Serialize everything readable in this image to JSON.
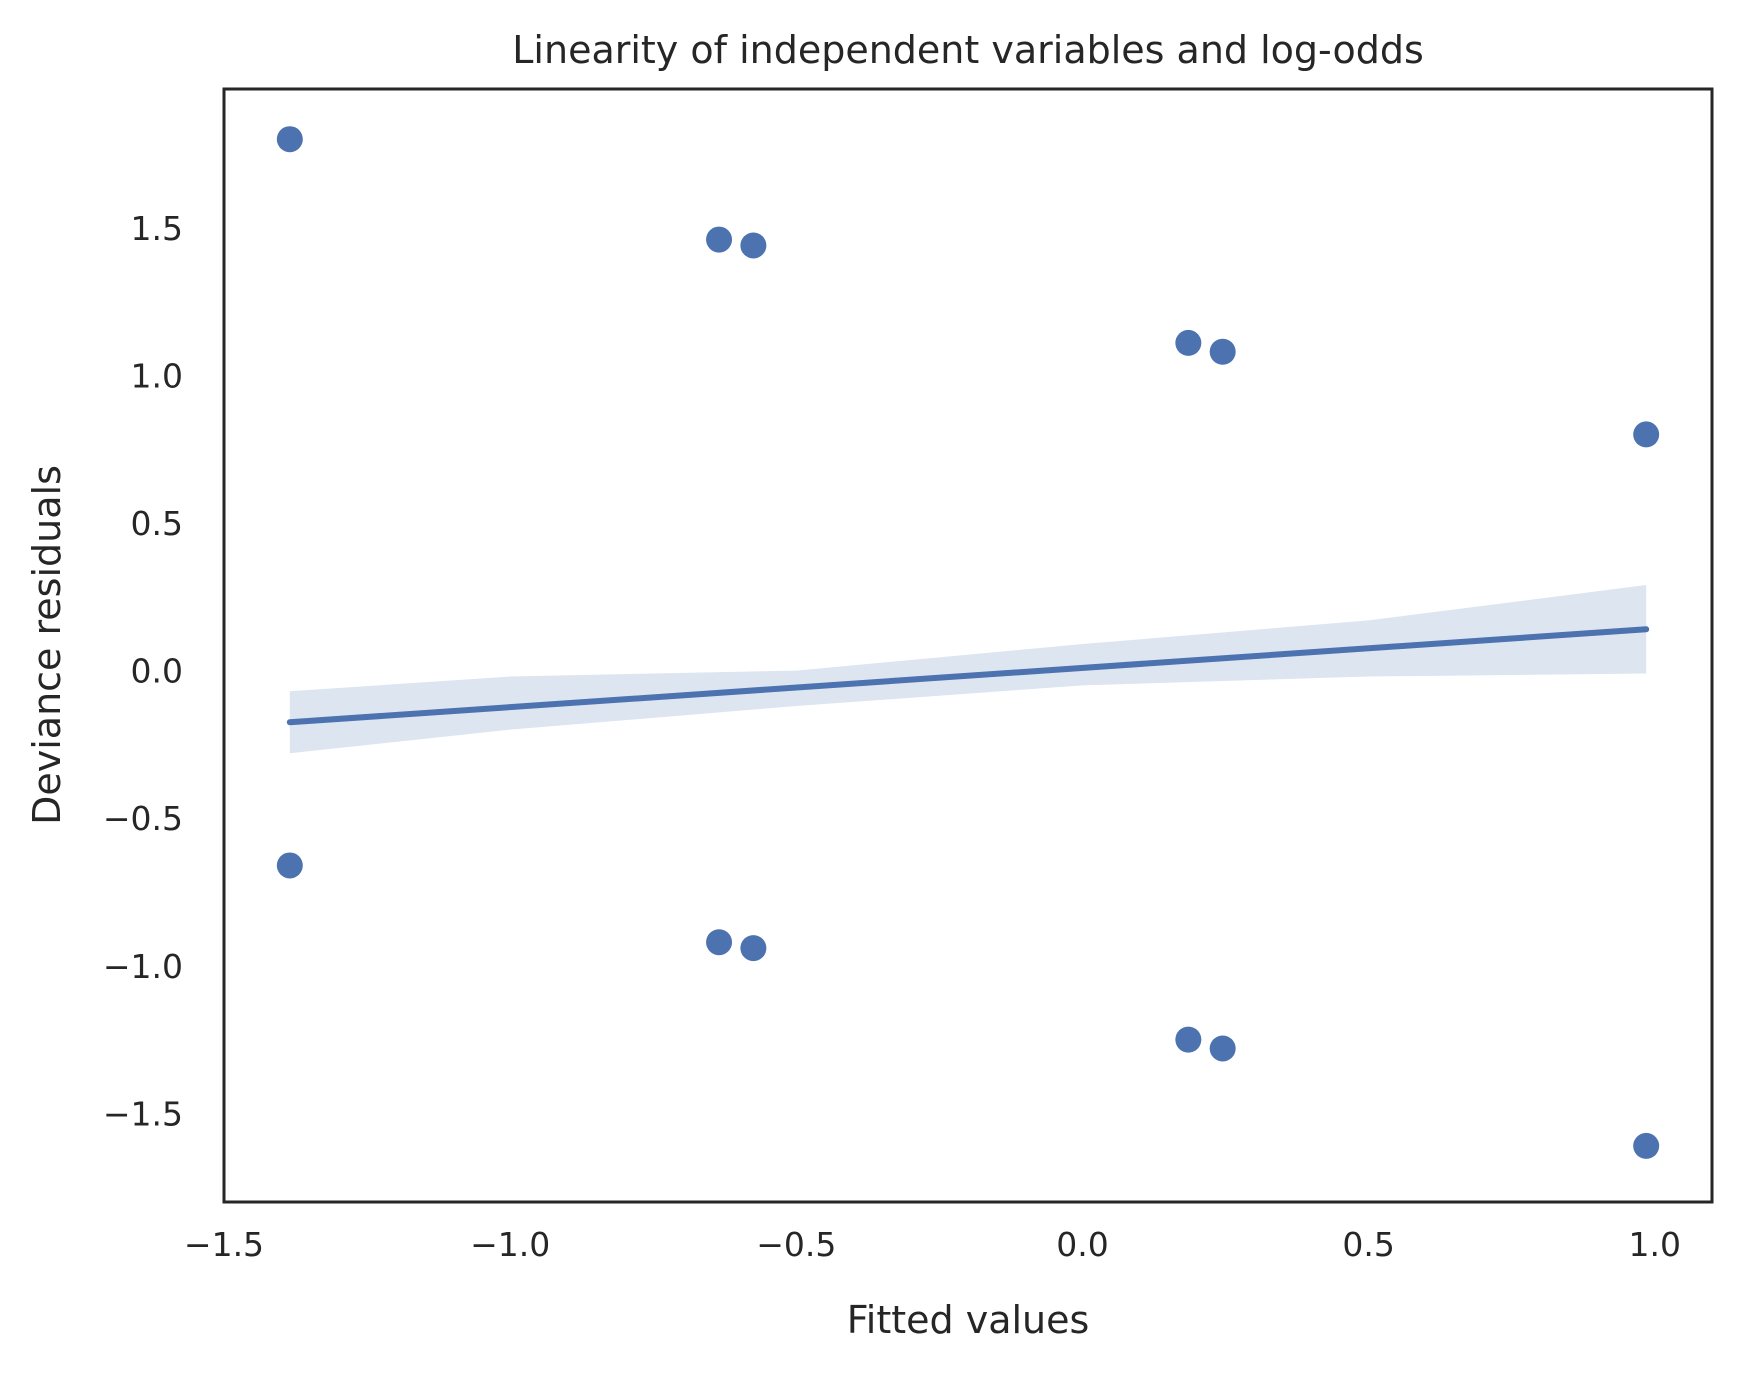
{
  "chart_data": {
    "type": "scatter",
    "title": "Linearity of independent variables and log-odds",
    "xlabel": "Fitted values",
    "ylabel": "Deviance residuals",
    "xlim": [
      -1.5,
      1.1
    ],
    "ylim": [
      -1.8,
      1.97
    ],
    "x_ticks": [
      -1.5,
      -1.0,
      -0.5,
      0.0,
      0.5,
      1.0
    ],
    "x_tick_labels": [
      "−1.5",
      "−1.0",
      "−0.5",
      "0.0",
      "0.5",
      "1.0"
    ],
    "y_ticks": [
      -1.5,
      -1.0,
      -0.5,
      0.0,
      0.5,
      1.0,
      1.5
    ],
    "y_tick_labels": [
      "−1.5",
      "−1.0",
      "−0.5",
      "0.0",
      "0.5",
      "1.0",
      "1.5"
    ],
    "grid": false,
    "color": "#4c72b0",
    "band_color": "#dde5f1",
    "points": [
      {
        "x": -1.385,
        "y": 1.8
      },
      {
        "x": -1.385,
        "y": -0.66
      },
      {
        "x": -0.635,
        "y": 1.46
      },
      {
        "x": -0.575,
        "y": 1.44
      },
      {
        "x": -0.635,
        "y": -0.92
      },
      {
        "x": -0.575,
        "y": -0.94
      },
      {
        "x": 0.185,
        "y": 1.11
      },
      {
        "x": 0.245,
        "y": 1.08
      },
      {
        "x": 0.185,
        "y": -1.25
      },
      {
        "x": 0.245,
        "y": -1.28
      },
      {
        "x": 0.985,
        "y": 0.8
      },
      {
        "x": 0.985,
        "y": -1.61
      }
    ],
    "regression_line": [
      {
        "x": -1.385,
        "y": -0.175
      },
      {
        "x": 0.985,
        "y": 0.14
      }
    ],
    "confidence_band": {
      "x": [
        -1.385,
        -1.0,
        -0.5,
        0.0,
        0.5,
        0.985
      ],
      "upper": [
        -0.07,
        -0.02,
        0.0,
        0.09,
        0.17,
        0.29
      ],
      "lower": [
        -0.28,
        -0.2,
        -0.12,
        -0.05,
        -0.02,
        -0.01
      ]
    }
  }
}
